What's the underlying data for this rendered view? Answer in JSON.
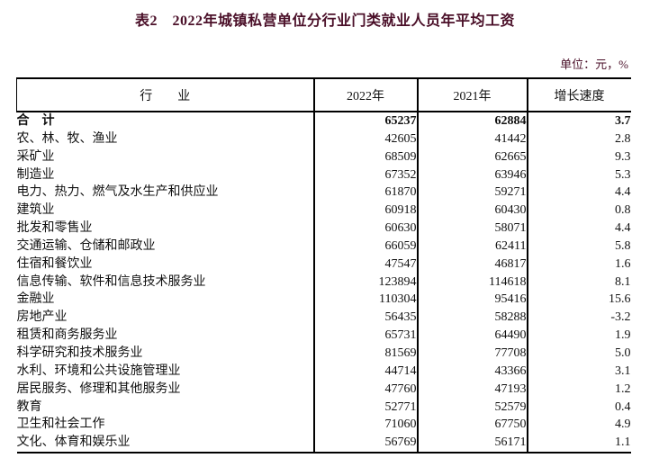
{
  "title": "表2　2022年城镇私营单位分行业门类就业人员年平均工资",
  "unit_note": "单位：元，%",
  "colors": {
    "title": "#4a0f28",
    "note": "#4a0f28",
    "text": "#111111",
    "border": "#000000"
  },
  "table": {
    "headers": [
      "行　　业",
      "2022年",
      "2021年",
      "增长速度"
    ],
    "rows": [
      {
        "industry": "合　计",
        "y2022": "65237",
        "y2021": "62884",
        "growth": "3.7",
        "bold": true
      },
      {
        "industry": "农、林、牧、渔业",
        "y2022": "42605",
        "y2021": "41442",
        "growth": "2.8"
      },
      {
        "industry": "采矿业",
        "y2022": "68509",
        "y2021": "62665",
        "growth": "9.3"
      },
      {
        "industry": "制造业",
        "y2022": "67352",
        "y2021": "63946",
        "growth": "5.3"
      },
      {
        "industry": "电力、热力、燃气及水生产和供应业",
        "y2022": "61870",
        "y2021": "59271",
        "growth": "4.4"
      },
      {
        "industry": "建筑业",
        "y2022": "60918",
        "y2021": "60430",
        "growth": "0.8"
      },
      {
        "industry": "批发和零售业",
        "y2022": "60630",
        "y2021": "58071",
        "growth": "4.4"
      },
      {
        "industry": "交通运输、仓储和邮政业",
        "y2022": "66059",
        "y2021": "62411",
        "growth": "5.8"
      },
      {
        "industry": "住宿和餐饮业",
        "y2022": "47547",
        "y2021": "46817",
        "growth": "1.6"
      },
      {
        "industry": "信息传输、软件和信息技术服务业",
        "y2022": "123894",
        "y2021": "114618",
        "growth": "8.1"
      },
      {
        "industry": "金融业",
        "y2022": "110304",
        "y2021": "95416",
        "growth": "15.6"
      },
      {
        "industry": "房地产业",
        "y2022": "56435",
        "y2021": "58288",
        "growth": "-3.2"
      },
      {
        "industry": "租赁和商务服务业",
        "y2022": "65731",
        "y2021": "64490",
        "growth": "1.9"
      },
      {
        "industry": "科学研究和技术服务业",
        "y2022": "81569",
        "y2021": "77708",
        "growth": "5.0"
      },
      {
        "industry": "水利、环境和公共设施管理业",
        "y2022": "44714",
        "y2021": "43366",
        "growth": "3.1"
      },
      {
        "industry": "居民服务、修理和其他服务业",
        "y2022": "47760",
        "y2021": "47193",
        "growth": "1.2"
      },
      {
        "industry": "教育",
        "y2022": "52771",
        "y2021": "52579",
        "growth": "0.4"
      },
      {
        "industry": "卫生和社会工作",
        "y2022": "71060",
        "y2021": "67750",
        "growth": "4.9"
      },
      {
        "industry": "文化、体育和娱乐业",
        "y2022": "56769",
        "y2021": "56171",
        "growth": "1.1"
      }
    ]
  }
}
